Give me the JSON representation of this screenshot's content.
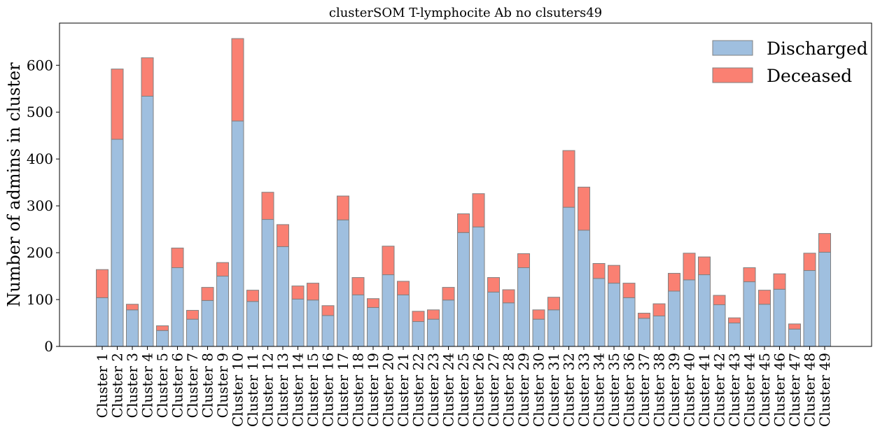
{
  "chart_data": {
    "type": "bar",
    "stacked": true,
    "title": "clusterSOM T-lymphocite Ab no clsuters49",
    "xlabel": "",
    "ylabel": "Number of admins in cluster",
    "ylim": [
      0,
      690
    ],
    "yticks": [
      0,
      100,
      200,
      300,
      400,
      500,
      600
    ],
    "grid": false,
    "legend_position": "top-right",
    "categories": [
      "Cluster 1",
      "Cluster 2",
      "Cluster 3",
      "Cluster 4",
      "Cluster 5",
      "Cluster 6",
      "Cluster 7",
      "Cluster 8",
      "Cluster 9",
      "Cluster 10",
      "Cluster 11",
      "Cluster 12",
      "Cluster 13",
      "Cluster 14",
      "Cluster 15",
      "Cluster 16",
      "Cluster 17",
      "Cluster 18",
      "Cluster 19",
      "Cluster 20",
      "Cluster 21",
      "Cluster 22",
      "Cluster 23",
      "Cluster 24",
      "Cluster 25",
      "Cluster 26",
      "Cluster 27",
      "Cluster 28",
      "Cluster 29",
      "Cluster 30",
      "Cluster 31",
      "Cluster 32",
      "Cluster 33",
      "Cluster 34",
      "Cluster 35",
      "Cluster 36",
      "Cluster 37",
      "Cluster 38",
      "Cluster 39",
      "Cluster 40",
      "Cluster 41",
      "Cluster 42",
      "Cluster 43",
      "Cluster 44",
      "Cluster 45",
      "Cluster 46",
      "Cluster 47",
      "Cluster 48",
      "Cluster 49"
    ],
    "series": [
      {
        "name": "Discharged",
        "color": "#9fbfdf",
        "values": [
          104,
          442,
          78,
          534,
          34,
          168,
          58,
          98,
          150,
          481,
          96,
          271,
          213,
          101,
          99,
          66,
          270,
          110,
          83,
          153,
          110,
          53,
          58,
          99,
          243,
          255,
          116,
          93,
          168,
          58,
          78,
          297,
          248,
          145,
          135,
          104,
          60,
          65,
          118,
          142,
          153,
          89,
          50,
          138,
          90,
          122,
          37,
          162,
          201
        ]
      },
      {
        "name": "Deceased",
        "color": "#fa8072",
        "values": [
          60,
          150,
          12,
          82,
          10,
          42,
          19,
          28,
          29,
          176,
          24,
          58,
          47,
          28,
          36,
          21,
          51,
          37,
          19,
          61,
          29,
          22,
          20,
          27,
          40,
          71,
          31,
          28,
          30,
          20,
          27,
          121,
          92,
          32,
          38,
          31,
          11,
          26,
          38,
          57,
          38,
          20,
          11,
          30,
          30,
          33,
          11,
          37,
          40
        ]
      }
    ]
  }
}
